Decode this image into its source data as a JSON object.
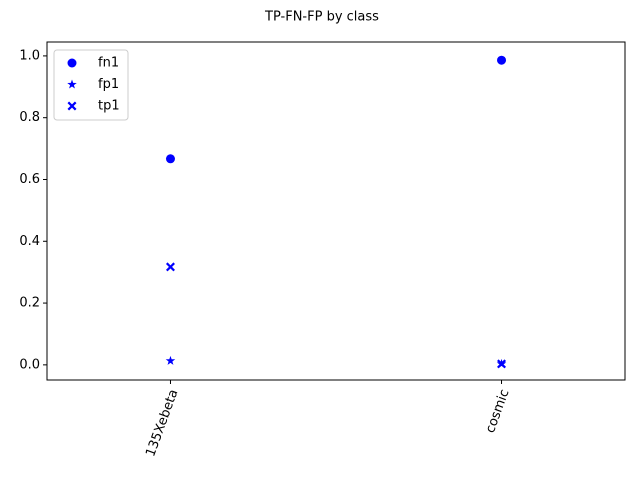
{
  "chart_data": {
    "type": "scatter",
    "title": "TP-FN-FP by class",
    "categories": [
      "135Xebeta",
      "cosmic"
    ],
    "series": [
      {
        "name": "fn1",
        "color": "#0000ff",
        "marker": "circle",
        "values": [
          0.667,
          0.986
        ]
      },
      {
        "name": "fp1",
        "color": "#0000ff",
        "marker": "star",
        "values": [
          0.013,
          0.003
        ]
      },
      {
        "name": "tp1",
        "color": "#0000ff",
        "marker": "x",
        "values": [
          0.317,
          0.003
        ]
      }
    ],
    "ylim": [
      -0.049,
      1.045
    ],
    "yticks": [
      {
        "value": 0,
        "label": "0.0"
      },
      0.2,
      0.4,
      0.6,
      0.8,
      {
        "value": 1,
        "label": "1.0"
      }
    ],
    "legend": "upper left"
  }
}
